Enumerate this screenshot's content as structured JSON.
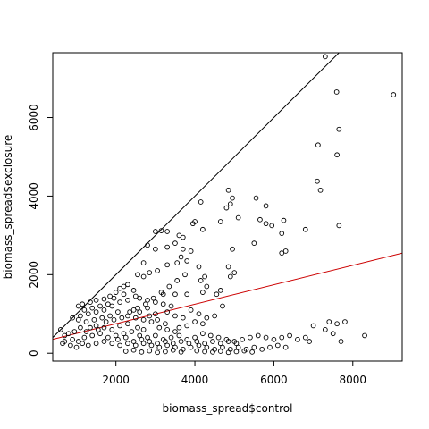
{
  "chart_data": {
    "type": "scatter",
    "xlabel": "biomass_spread$control",
    "ylabel": "biomass_spread$exclosure",
    "xlim": [
      400,
      9250
    ],
    "ylim": [
      -200,
      7650
    ],
    "x_ticks": [
      2000,
      4000,
      6000,
      8000
    ],
    "y_ticks": [
      0,
      2000,
      4000,
      6000
    ],
    "x_tick_labels": [
      "2000",
      "4000",
      "6000",
      "8000"
    ],
    "y_tick_labels": [
      "0",
      "2000",
      "4000",
      "6000"
    ],
    "grid": false,
    "colors": {
      "points": "#000000",
      "identity_line": "#000000",
      "fit_line": "#cc0000"
    },
    "lines": [
      {
        "id": "identity",
        "color": "#000000",
        "intercept": 0,
        "slope": 1
      },
      {
        "id": "fit",
        "color": "#cc0000",
        "intercept": 255,
        "slope": 0.248
      }
    ],
    "points": [
      [
        7300,
        7550
      ],
      [
        9030,
        6580
      ],
      [
        7590,
        6650
      ],
      [
        7650,
        5700
      ],
      [
        7600,
        5050
      ],
      [
        7120,
        5300
      ],
      [
        7100,
        4380
      ],
      [
        7180,
        4150
      ],
      [
        7650,
        3250
      ],
      [
        6800,
        3150
      ],
      [
        6250,
        3380
      ],
      [
        6200,
        3050
      ],
      [
        6300,
        2600
      ],
      [
        6200,
        2550
      ],
      [
        5950,
        3250
      ],
      [
        5800,
        3300
      ],
      [
        5650,
        3400
      ],
      [
        5550,
        3950
      ],
      [
        5800,
        3750
      ],
      [
        5500,
        2800
      ],
      [
        4850,
        4150
      ],
      [
        4950,
        3950
      ],
      [
        4900,
        3800
      ],
      [
        4800,
        3700
      ],
      [
        5100,
        3450
      ],
      [
        4650,
        3350
      ],
      [
        4950,
        2650
      ],
      [
        4850,
        2200
      ],
      [
        5000,
        2050
      ],
      [
        4900,
        1950
      ],
      [
        4650,
        1600
      ],
      [
        4550,
        1500
      ],
      [
        4150,
        3850
      ],
      [
        4000,
        3350
      ],
      [
        3950,
        3300
      ],
      [
        4200,
        3150
      ],
      [
        3600,
        3000
      ],
      [
        3700,
        2950
      ],
      [
        3500,
        2800
      ],
      [
        3300,
        3100
      ],
      [
        3150,
        3120
      ],
      [
        3000,
        3100
      ],
      [
        2800,
        2750
      ],
      [
        3000,
        2650
      ],
      [
        3300,
        2700
      ],
      [
        3700,
        2650
      ],
      [
        3900,
        2600
      ],
      [
        3650,
        2450
      ],
      [
        3800,
        2350
      ],
      [
        3550,
        2300
      ],
      [
        3300,
        2250
      ],
      [
        3050,
        2100
      ],
      [
        2700,
        2300
      ],
      [
        2850,
        2050
      ],
      [
        2700,
        1950
      ],
      [
        2550,
        2000
      ],
      [
        4100,
        2200
      ],
      [
        4250,
        1950
      ],
      [
        4150,
        1850
      ],
      [
        4300,
        1700
      ],
      [
        4200,
        1550
      ],
      [
        3800,
        1500
      ],
      [
        3500,
        1500
      ],
      [
        3200,
        1500
      ],
      [
        2300,
        1750
      ],
      [
        2200,
        1700
      ],
      [
        2100,
        1650
      ],
      [
        2450,
        1600
      ],
      [
        2000,
        1550
      ],
      [
        1850,
        1450
      ],
      [
        1950,
        1400
      ],
      [
        1700,
        1380
      ],
      [
        1500,
        1350
      ],
      [
        1350,
        1300
      ],
      [
        1150,
        1250
      ],
      [
        1050,
        1200
      ],
      [
        1200,
        1100
      ],
      [
        1400,
        1150
      ],
      [
        1600,
        1200
      ],
      [
        1800,
        1250
      ],
      [
        2200,
        1500
      ],
      [
        2500,
        1450
      ],
      [
        2600,
        1400
      ],
      [
        2800,
        1350
      ],
      [
        3000,
        1300
      ],
      [
        3200,
        1250
      ],
      [
        3400,
        1200
      ],
      [
        2300,
        1350
      ],
      [
        2100,
        1300
      ],
      [
        1900,
        1200
      ],
      [
        1700,
        1100
      ],
      [
        1500,
        1050
      ],
      [
        1300,
        1000
      ],
      [
        1100,
        950
      ],
      [
        900,
        900
      ],
      [
        1050,
        850
      ],
      [
        2450,
        1100
      ],
      [
        2600,
        1050
      ],
      [
        2800,
        1150
      ],
      [
        3000,
        1000
      ],
      [
        3300,
        1050
      ],
      [
        3500,
        950
      ],
      [
        3700,
        900
      ],
      [
        3900,
        1100
      ],
      [
        4100,
        1000
      ],
      [
        4300,
        900
      ],
      [
        4500,
        950
      ],
      [
        4700,
        1200
      ],
      [
        4200,
        750
      ],
      [
        4000,
        800
      ],
      [
        3800,
        700
      ],
      [
        3600,
        650
      ],
      [
        2050,
        1050
      ],
      [
        2300,
        950
      ],
      [
        2500,
        900
      ],
      [
        2700,
        850
      ],
      [
        2900,
        800
      ],
      [
        1850,
        950
      ],
      [
        1650,
        900
      ],
      [
        1450,
        850
      ],
      [
        1250,
        800
      ],
      [
        1500,
        700
      ],
      [
        1700,
        650
      ],
      [
        1900,
        600
      ],
      [
        2100,
        700
      ],
      [
        2300,
        750
      ],
      [
        2550,
        650
      ],
      [
        2700,
        600
      ],
      [
        3100,
        650
      ],
      [
        3300,
        600
      ],
      [
        3500,
        550
      ],
      [
        3250,
        750
      ],
      [
        3050,
        850
      ],
      [
        2850,
        950
      ],
      [
        1100,
        650
      ],
      [
        950,
        550
      ],
      [
        800,
        500
      ],
      [
        700,
        450
      ],
      [
        900,
        350
      ],
      [
        1050,
        300
      ],
      [
        1200,
        400
      ],
      [
        1400,
        450
      ],
      [
        1600,
        500
      ],
      [
        1800,
        400
      ],
      [
        2000,
        450
      ],
      [
        2200,
        500
      ],
      [
        2400,
        550
      ],
      [
        2600,
        450
      ],
      [
        2800,
        400
      ],
      [
        3000,
        450
      ],
      [
        3200,
        350
      ],
      [
        3400,
        400
      ],
      [
        3600,
        450
      ],
      [
        3800,
        350
      ],
      [
        4000,
        400
      ],
      [
        4200,
        500
      ],
      [
        4400,
        450
      ],
      [
        4600,
        400
      ],
      [
        4800,
        350
      ],
      [
        5000,
        300
      ],
      [
        5200,
        350
      ],
      [
        5400,
        400
      ],
      [
        5600,
        450
      ],
      [
        5800,
        400
      ],
      [
        6000,
        350
      ],
      [
        6200,
        400
      ],
      [
        6400,
        450
      ],
      [
        6600,
        350
      ],
      [
        6800,
        400
      ],
      [
        7000,
        700
      ],
      [
        7400,
        800
      ],
      [
        7600,
        750
      ],
      [
        7800,
        800
      ],
      [
        8300,
        450
      ],
      [
        7500,
        500
      ],
      [
        7300,
        600
      ],
      [
        6900,
        300
      ],
      [
        7700,
        300
      ],
      [
        700,
        300
      ],
      [
        850,
        200
      ],
      [
        1000,
        150
      ],
      [
        1150,
        250
      ],
      [
        1300,
        200
      ],
      [
        1500,
        250
      ],
      [
        1700,
        300
      ],
      [
        1900,
        250
      ],
      [
        2100,
        200
      ],
      [
        2300,
        250
      ],
      [
        2500,
        200
      ],
      [
        2700,
        250
      ],
      [
        2900,
        200
      ],
      [
        3100,
        150
      ],
      [
        3300,
        200
      ],
      [
        3500,
        150
      ],
      [
        3700,
        100
      ],
      [
        3900,
        150
      ],
      [
        4100,
        200
      ],
      [
        4300,
        150
      ],
      [
        4500,
        100
      ],
      [
        4700,
        150
      ],
      [
        4900,
        100
      ],
      [
        5100,
        150
      ],
      [
        5300,
        100
      ],
      [
        5500,
        150
      ],
      [
        5700,
        100
      ],
      [
        5900,
        150
      ],
      [
        6100,
        200
      ],
      [
        6300,
        150
      ],
      [
        2250,
        50
      ],
      [
        2450,
        80
      ],
      [
        2650,
        30
      ],
      [
        2850,
        60
      ],
      [
        3050,
        20
      ],
      [
        3250,
        40
      ],
      [
        3450,
        80
      ],
      [
        3650,
        30
      ],
      [
        4050,
        60
      ],
      [
        4250,
        40
      ],
      [
        4450,
        30
      ],
      [
        4650,
        50
      ],
      [
        4850,
        20
      ],
      [
        5050,
        40
      ],
      [
        5250,
        60
      ],
      [
        5450,
        30
      ],
      [
        600,
        600
      ],
      [
        650,
        250
      ],
      [
        1250,
        550
      ],
      [
        1350,
        650
      ],
      [
        1550,
        600
      ],
      [
        1750,
        800
      ],
      [
        1950,
        850
      ],
      [
        2150,
        900
      ],
      [
        2350,
        1050
      ],
      [
        2550,
        1150
      ],
      [
        2750,
        1250
      ],
      [
        2950,
        1400
      ],
      [
        3150,
        1550
      ],
      [
        3350,
        1700
      ],
      [
        3550,
        1850
      ],
      [
        3750,
        2000
      ],
      [
        2050,
        350
      ],
      [
        2250,
        400
      ],
      [
        2450,
        300
      ],
      [
        2650,
        350
      ],
      [
        2850,
        300
      ],
      [
        3050,
        250
      ],
      [
        3250,
        300
      ],
      [
        3450,
        250
      ],
      [
        3650,
        300
      ],
      [
        3850,
        250
      ],
      [
        4050,
        300
      ],
      [
        4250,
        250
      ],
      [
        4450,
        300
      ],
      [
        4650,
        250
      ],
      [
        4850,
        300
      ],
      [
        5050,
        250
      ]
    ]
  }
}
